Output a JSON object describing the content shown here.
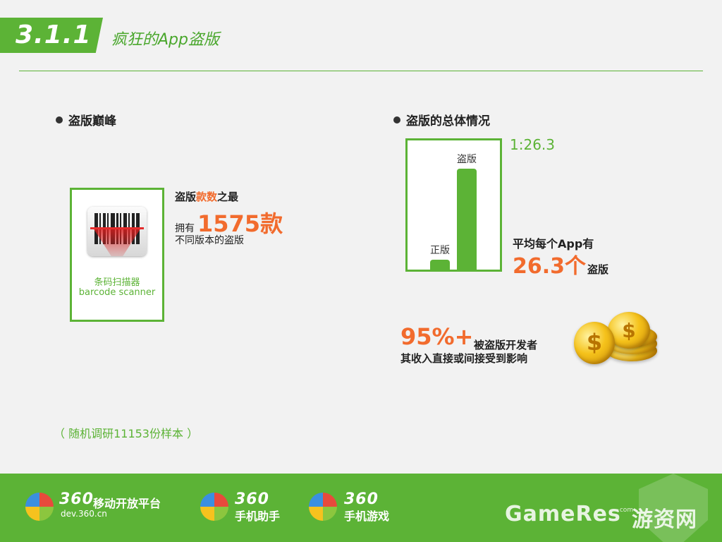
{
  "header": {
    "section_number": "3.1.1",
    "section_title": "疯狂的App盗版"
  },
  "left": {
    "heading": "盗版巅峰",
    "app_card": {
      "name_cn": "条码扫描器",
      "name_en": "barcode scanner"
    },
    "title_prefix": "盗版",
    "title_highlight": "款数",
    "title_suffix": "之最",
    "own_prefix": "拥有",
    "own_count": "1575款",
    "subtitle": "不同版本的盗版",
    "sample_note": "（ 随机调研11153份样本 ）"
  },
  "right": {
    "heading": "盗版的总体情况",
    "ratio": "1:26.3",
    "avg_line1": "平均每个App有",
    "avg_big": "26.3个",
    "avg_suffix": "盗版",
    "percent": "95%+",
    "percent_text1": "被盗版开发者",
    "percent_text2": "其收入直接或间接受到影响",
    "chart_data": {
      "type": "bar",
      "categories": [
        "正版",
        "盗版"
      ],
      "values": [
        1,
        26.3
      ],
      "title": "",
      "xlabel": "",
      "ylabel": ""
    }
  },
  "footer": {
    "brands": [
      {
        "num": "360",
        "text": "移动开放平台",
        "sub": "dev.360.cn"
      },
      {
        "num": "360",
        "text": "手机助手",
        "sub": ""
      },
      {
        "num": "360",
        "text": "手机游戏",
        "sub": ""
      }
    ],
    "watermark": "GameRes",
    "watermark_com": ".com",
    "watermark_cn": "游资网"
  },
  "colors": {
    "accent_green": "#5cb336",
    "highlight_orange": "#f26b2d",
    "background": "#f2f2f2"
  }
}
